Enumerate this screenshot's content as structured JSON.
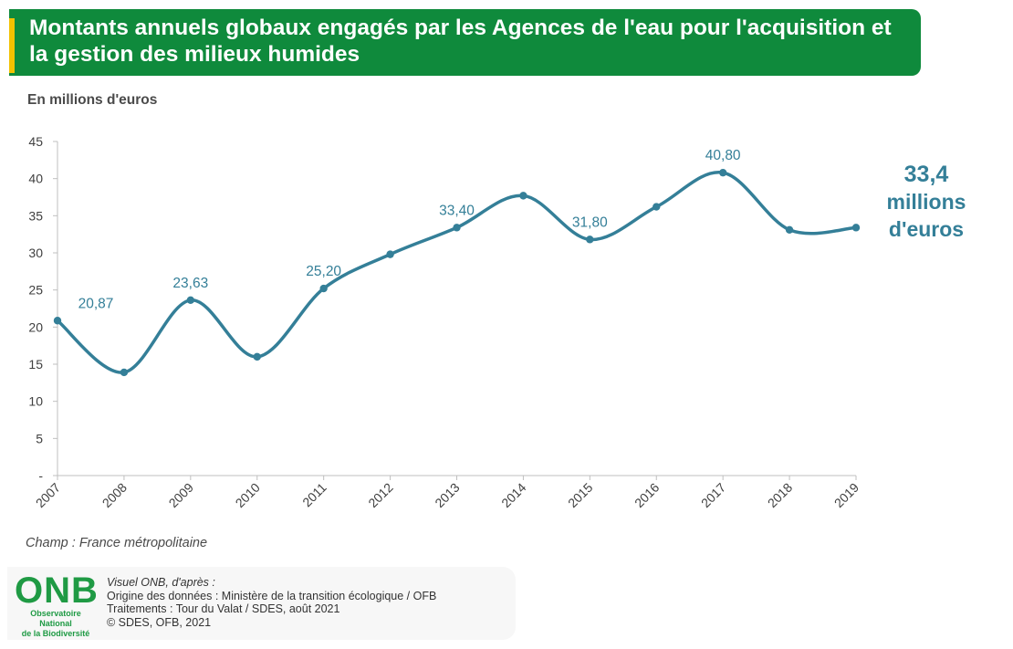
{
  "title": "Montants annuels globaux engagés par les Agences de l'eau pour l'acquisition et la gestion des milieux humides",
  "unit_label": "En millions d'euros",
  "callout": {
    "value": "33,4",
    "line2": "millions",
    "line3": "d'euros"
  },
  "scope": "Champ : France métropolitaine",
  "logo": {
    "name": "ONB",
    "subtitle_line1": "Observatoire National",
    "subtitle_line2": "de la Biodiversité"
  },
  "credits": [
    "Visuel ONB, d'après :",
    "Origine des données : Ministère de la transition écologique / OFB",
    "Traitements : Tour du Valat / SDES, août 2021",
    "©  SDES, OFB, 2021"
  ],
  "colors": {
    "banner": "#0f8a3c",
    "accent": "#f2c200",
    "series": "#347f98",
    "logo": "#1f9a44"
  },
  "chart_data": {
    "type": "line",
    "title": "Montants annuels globaux engagés par les Agences de l'eau pour l'acquisition et la gestion des milieux humides",
    "xlabel": "",
    "ylabel": "En millions d'euros",
    "x": [
      "2007",
      "2008",
      "2009",
      "2010",
      "2011",
      "2012",
      "2013",
      "2014",
      "2015",
      "2016",
      "2017",
      "2018",
      "2019"
    ],
    "series": [
      {
        "values": [
          20.87,
          13.9,
          23.63,
          16.0,
          25.2,
          29.8,
          33.4,
          37.7,
          31.8,
          36.2,
          40.8,
          33.1,
          33.4
        ]
      }
    ],
    "data_labels": [
      {
        "x": "2007",
        "text": "20,87"
      },
      {
        "x": "2009",
        "text": "23,63"
      },
      {
        "x": "2011",
        "text": "25,20"
      },
      {
        "x": "2013",
        "text": "33,40"
      },
      {
        "x": "2015",
        "text": "31,80"
      },
      {
        "x": "2017",
        "text": "40,80"
      }
    ],
    "yticks": [
      0,
      5,
      10,
      15,
      20,
      25,
      30,
      35,
      40,
      45
    ],
    "ytick_labels": [
      "-",
      "5",
      "10",
      "15",
      "20",
      "25",
      "30",
      "35",
      "40",
      "45"
    ],
    "ylim": [
      0,
      45
    ],
    "smooth": true,
    "grid": false
  }
}
